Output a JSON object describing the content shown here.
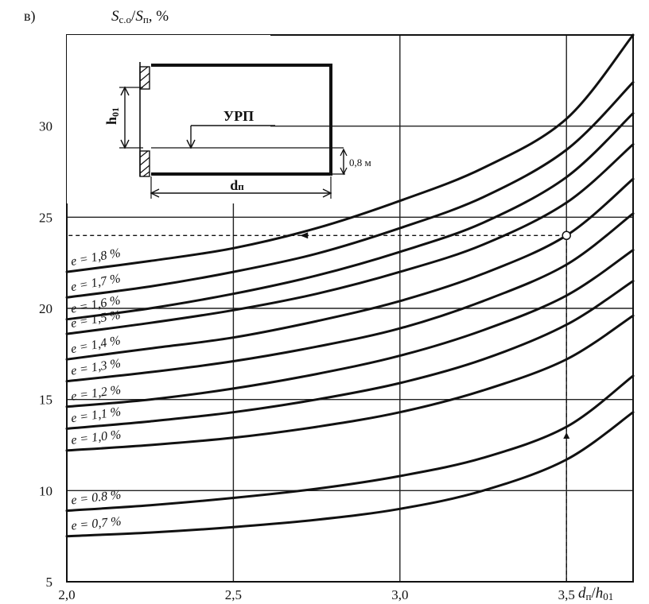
{
  "panel_label": "в)",
  "chart_data": {
    "type": "line",
    "title": "",
    "ylabel_parts": {
      "s1": "S",
      "s1_sub": "с.о",
      "sep": "/",
      "s2": "S",
      "s2_sub": "п",
      "unit": ", %"
    },
    "xlabel_parts": {
      "d": "d",
      "d_sub": "п",
      "sep": "/",
      "h": "h",
      "h_sub": "01"
    },
    "xlim": [
      2.0,
      3.7
    ],
    "ylim": [
      5,
      35
    ],
    "x_ticks": [
      2.0,
      2.5,
      3.0,
      3.5
    ],
    "x_tick_labels": [
      "2,0",
      "2,5",
      "3,0",
      "3,5"
    ],
    "y_ticks": [
      5,
      10,
      15,
      20,
      25,
      30
    ],
    "y_tick_labels": [
      "5",
      "10",
      "15",
      "20",
      "25",
      "30"
    ],
    "grid": true,
    "x": [
      2.0,
      2.25,
      2.5,
      2.75,
      3.0,
      3.25,
      3.5,
      3.7
    ],
    "series": [
      {
        "name": "e = 1,8 %",
        "values": [
          22.0,
          22.6,
          23.3,
          24.4,
          25.9,
          27.7,
          30.4,
          35.0
        ]
      },
      {
        "name": "e = 1,7 %",
        "values": [
          20.6,
          21.2,
          22.0,
          23.0,
          24.4,
          26.1,
          28.7,
          32.4
        ]
      },
      {
        "name": "e = 1,6 %",
        "values": [
          19.4,
          20.0,
          20.8,
          21.8,
          23.1,
          24.7,
          27.2,
          30.7
        ]
      },
      {
        "name": "e = 1,5 %",
        "values": [
          18.6,
          19.2,
          19.9,
          20.8,
          22.0,
          23.5,
          25.8,
          29.0
        ]
      },
      {
        "name": "e = 1,4 %",
        "values": [
          17.2,
          17.8,
          18.4,
          19.3,
          20.4,
          21.9,
          24.0,
          27.1
        ]
      },
      {
        "name": "e = 1,3 %",
        "values": [
          16.0,
          16.5,
          17.1,
          17.9,
          18.9,
          20.4,
          22.4,
          25.2
        ]
      },
      {
        "name": "e = 1,2 %",
        "values": [
          14.6,
          15.0,
          15.6,
          16.4,
          17.4,
          18.8,
          20.7,
          23.2
        ]
      },
      {
        "name": "e = 1,1 %",
        "values": [
          13.4,
          13.8,
          14.3,
          15.0,
          15.9,
          17.2,
          19.1,
          21.5
        ]
      },
      {
        "name": "e = 1,0 %",
        "values": [
          12.2,
          12.5,
          12.9,
          13.5,
          14.3,
          15.5,
          17.2,
          19.6
        ]
      },
      {
        "name": "e = 0.8 %",
        "values": [
          8.9,
          9.2,
          9.6,
          10.1,
          10.8,
          11.8,
          13.5,
          16.3
        ]
      },
      {
        "name": "e = 0,7 %",
        "values": [
          7.5,
          7.7,
          8.0,
          8.4,
          9.0,
          10.0,
          11.7,
          14.3
        ]
      }
    ],
    "example_point": {
      "x": 3.5,
      "y": 24.0
    },
    "inset": {
      "h_label_main": "h",
      "h_label_sub": "01",
      "d_label_main": "d",
      "d_label_sub": "п",
      "urp_label": "УРП",
      "depth_label": "0,8 м"
    }
  }
}
